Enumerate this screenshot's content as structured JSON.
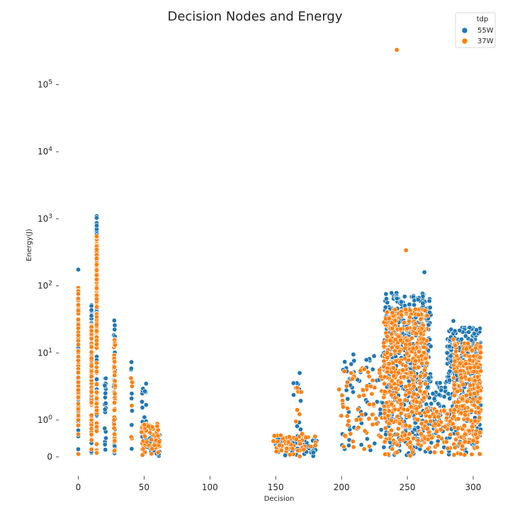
{
  "chart_data": {
    "type": "scatter",
    "title": "Decision Nodes and Energy",
    "xlabel": "Decision",
    "ylabel": "Energy(J)",
    "xlim": [
      -7,
      307
    ],
    "x_ticks": [
      0,
      50,
      100,
      150,
      200,
      250,
      300
    ],
    "y_scale": "symlog",
    "y_ticks": [
      {
        "value": 0,
        "label": "0"
      },
      {
        "value": 1,
        "label": "10^0"
      },
      {
        "value": 10,
        "label": "10^1"
      },
      {
        "value": 100,
        "label": "10^2"
      },
      {
        "value": 1000,
        "label": "10^3"
      },
      {
        "value": 10000,
        "label": "10^4"
      },
      {
        "value": 100000,
        "label": "10^5"
      }
    ],
    "legend": {
      "title": "tdp",
      "placement": "top-right",
      "entries": [
        {
          "name": "55W",
          "color": "#1f77b4"
        },
        {
          "name": "37W",
          "color": "#ff7f0e"
        }
      ]
    },
    "grid": false,
    "series": [
      {
        "name": "55W",
        "color": "#1f77b4",
        "clusters": [
          {
            "x": [
              0,
              0
            ],
            "y": [
              0,
              12
            ],
            "n": 60
          },
          {
            "x": [
              10,
              10
            ],
            "y": [
              0,
              55
            ],
            "n": 50
          },
          {
            "x": [
              14,
              14
            ],
            "y": [
              0,
              1150
            ],
            "n": 90
          },
          {
            "x": [
              20,
              21
            ],
            "y": [
              0,
              4.5
            ],
            "n": 25
          },
          {
            "x": [
              27,
              28
            ],
            "y": [
              0,
              33
            ],
            "n": 30
          },
          {
            "x": [
              40,
              41
            ],
            "y": [
              0,
              10
            ],
            "n": 8
          },
          {
            "x": [
              48,
              52
            ],
            "y": [
              0,
              3.5
            ],
            "n": 20
          },
          {
            "x": [
              52,
              62
            ],
            "y": [
              0,
              0.6
            ],
            "n": 40
          },
          {
            "x": [
              150,
              182
            ],
            "y": [
              0,
              0.55
            ],
            "n": 60
          },
          {
            "x": [
              163,
              170
            ],
            "y": [
              0,
              6.5
            ],
            "n": 15
          },
          {
            "x": [
              200,
              232
            ],
            "y": [
              0,
              10
            ],
            "n": 60
          },
          {
            "x": [
              232,
              268
            ],
            "y": [
              0,
              80
            ],
            "n": 420
          },
          {
            "x": [
              268,
              280
            ],
            "y": [
              0,
              4
            ],
            "n": 50
          },
          {
            "x": [
              280,
              306
            ],
            "y": [
              0,
              24
            ],
            "n": 260
          }
        ],
        "points": [
          {
            "x": 0,
            "y": 175
          },
          {
            "x": 0,
            "y": 45
          },
          {
            "x": 0,
            "y": 30
          },
          {
            "x": 263,
            "y": 160
          },
          {
            "x": 285,
            "y": 30
          },
          {
            "x": 209,
            "y": 9.5
          }
        ]
      },
      {
        "name": "37W",
        "color": "#ff7f0e",
        "clusters": [
          {
            "x": [
              0,
              0
            ],
            "y": [
              0,
              95
            ],
            "n": 80
          },
          {
            "x": [
              10,
              10
            ],
            "y": [
              0,
              28
            ],
            "n": 80
          },
          {
            "x": [
              14,
              14
            ],
            "y": [
              0,
              560
            ],
            "n": 110
          },
          {
            "x": [
              27,
              28
            ],
            "y": [
              0,
              17
            ],
            "n": 50
          },
          {
            "x": [
              40,
              41
            ],
            "y": [
              0,
              5
            ],
            "n": 6
          },
          {
            "x": [
              48,
              62
            ],
            "y": [
              0,
              0.9
            ],
            "n": 60
          },
          {
            "x": [
              147,
              182
            ],
            "y": [
              0,
              0.6
            ],
            "n": 50
          },
          {
            "x": [
              165,
              170
            ],
            "y": [
              0,
              3.7
            ],
            "n": 10
          },
          {
            "x": [
              198,
              232
            ],
            "y": [
              0,
              6
            ],
            "n": 70
          },
          {
            "x": [
              232,
              265
            ],
            "y": [
              0,
              45
            ],
            "n": 500
          },
          {
            "x": [
              265,
              285
            ],
            "y": [
              0,
              1.5
            ],
            "n": 60
          },
          {
            "x": [
              285,
              306
            ],
            "y": [
              0,
              14
            ],
            "n": 300
          }
        ],
        "points": [
          {
            "x": 242,
            "y": 330000
          },
          {
            "x": 249,
            "y": 340
          },
          {
            "x": 285,
            "y": 16
          }
        ]
      }
    ]
  }
}
